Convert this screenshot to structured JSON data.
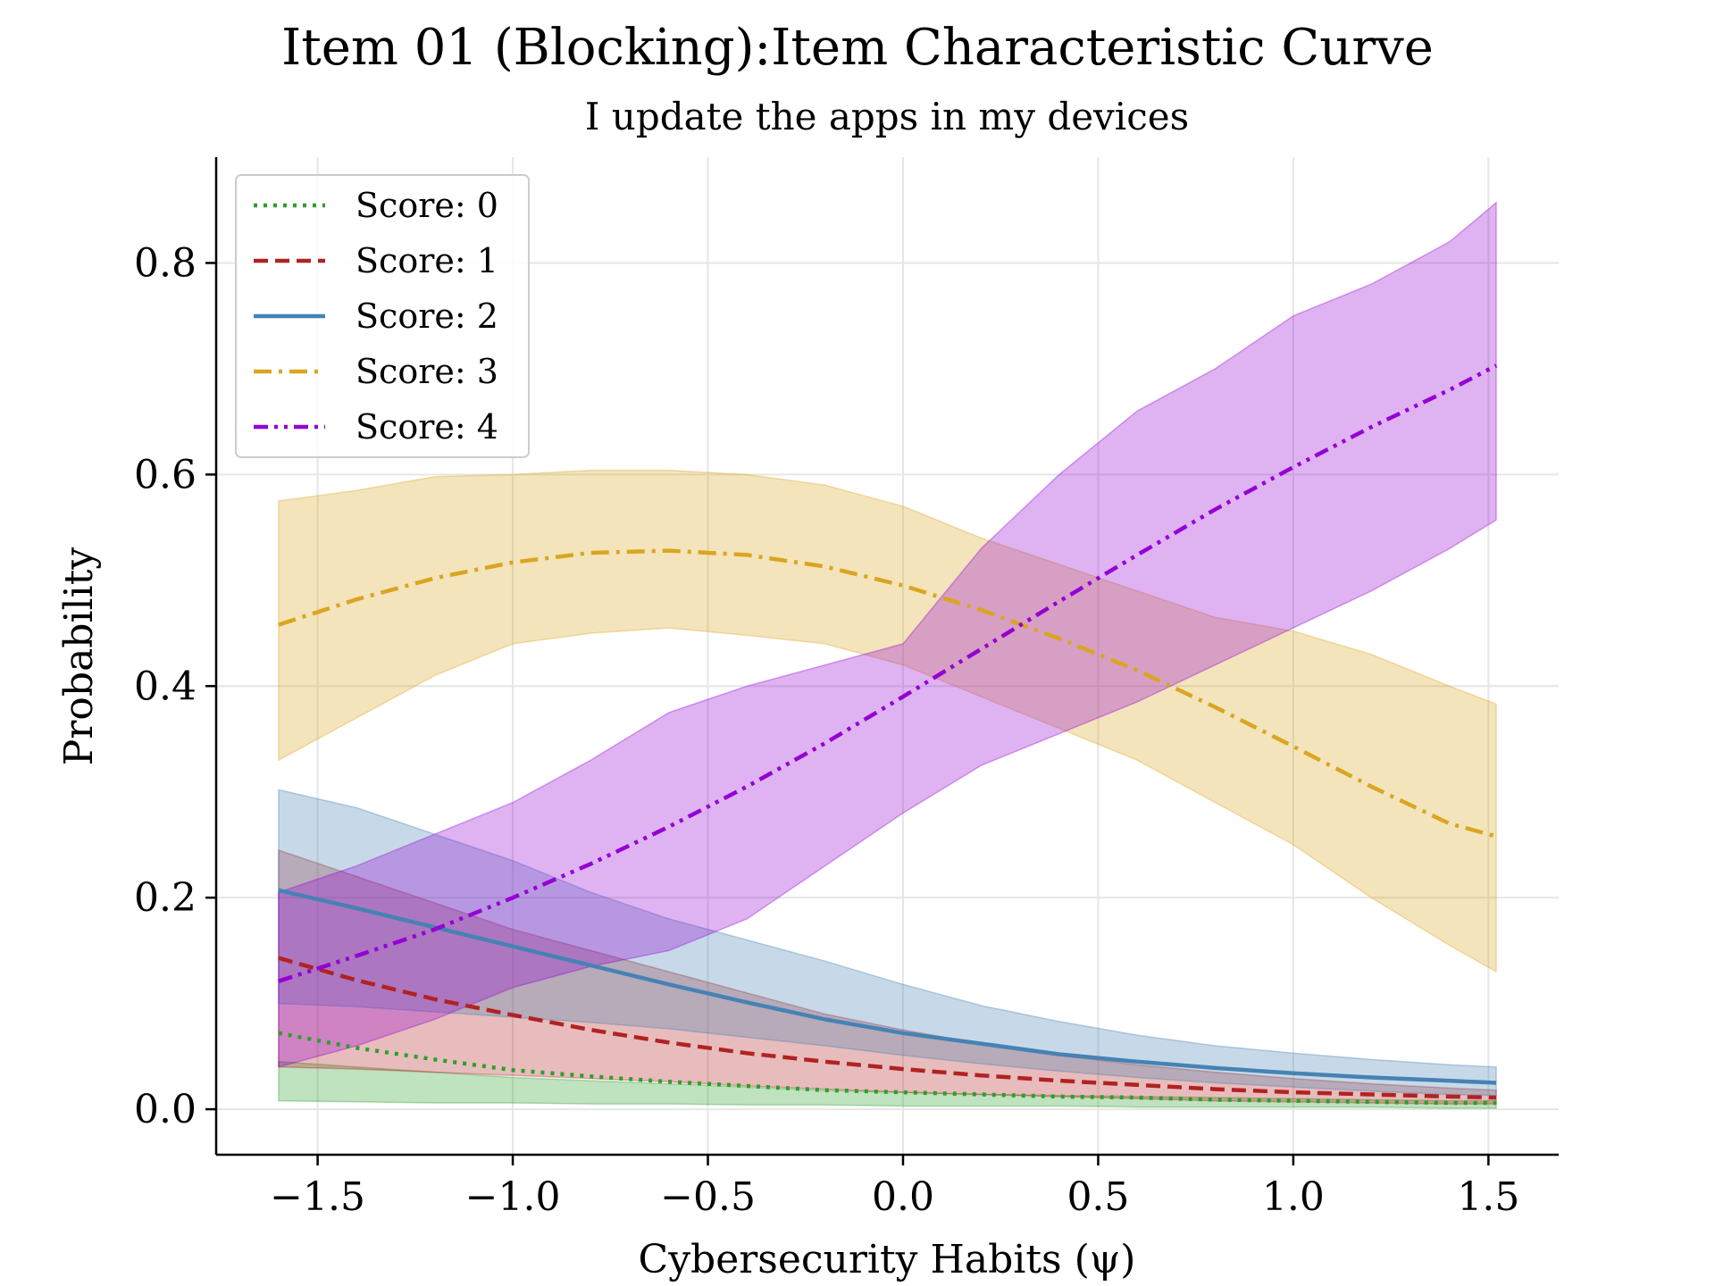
{
  "chart_data": {
    "type": "line",
    "title": "Item 01 (Blocking):Item Characteristic Curve",
    "subtitle": "I update the apps in my devices",
    "xlabel": "Cybersecurity Habits (ψ)",
    "ylabel": "Probability",
    "xlim": [
      -1.76,
      1.68
    ],
    "ylim": [
      -0.043,
      0.9
    ],
    "x_ticks": [
      -1.5,
      -1.0,
      -0.5,
      0.0,
      0.5,
      1.0,
      1.5
    ],
    "x_tick_labels": [
      "−1.5",
      "−1.0",
      "−0.5",
      "0.0",
      "0.5",
      "1.0",
      "1.5"
    ],
    "y_ticks": [
      0.0,
      0.2,
      0.4,
      0.6,
      0.8
    ],
    "y_tick_labels": [
      "0.0",
      "0.2",
      "0.4",
      "0.6",
      "0.8"
    ],
    "grid": true,
    "legend_position": "top-left",
    "x": [
      -1.6,
      -1.4,
      -1.2,
      -1.0,
      -0.8,
      -0.6,
      -0.4,
      -0.2,
      0.0,
      0.2,
      0.4,
      0.6,
      0.8,
      1.0,
      1.2,
      1.4,
      1.52
    ],
    "series": [
      {
        "name": "Score: 0",
        "color": "#2ca02c",
        "line_style": "dotted",
        "values": [
          0.072,
          0.058,
          0.047,
          0.037,
          0.031,
          0.026,
          0.022,
          0.018,
          0.016,
          0.014,
          0.012,
          0.011,
          0.009,
          0.008,
          0.007,
          0.006,
          0.006
        ],
        "lower": [
          0.008,
          0.007,
          0.006,
          0.006,
          0.005,
          0.005,
          0.004,
          0.004,
          0.003,
          0.003,
          0.003,
          0.002,
          0.002,
          0.002,
          0.002,
          0.001,
          0.001
        ],
        "upper": [
          0.045,
          0.04,
          0.035,
          0.03,
          0.027,
          0.024,
          0.021,
          0.018,
          0.016,
          0.014,
          0.013,
          0.012,
          0.011,
          0.01,
          0.009,
          0.008,
          0.008
        ]
      },
      {
        "name": "Score: 1",
        "color": "#b22222",
        "line_style": "dashed",
        "values": [
          0.143,
          0.122,
          0.104,
          0.089,
          0.075,
          0.063,
          0.053,
          0.045,
          0.038,
          0.032,
          0.027,
          0.023,
          0.019,
          0.016,
          0.014,
          0.012,
          0.011
        ],
        "lower": [
          0.04,
          0.038,
          0.035,
          0.032,
          0.029,
          0.026,
          0.022,
          0.019,
          0.016,
          0.014,
          0.012,
          0.01,
          0.008,
          0.007,
          0.006,
          0.005,
          0.005
        ],
        "upper": [
          0.245,
          0.22,
          0.195,
          0.17,
          0.15,
          0.13,
          0.11,
          0.09,
          0.075,
          0.062,
          0.051,
          0.042,
          0.035,
          0.029,
          0.024,
          0.02,
          0.018
        ]
      },
      {
        "name": "Score: 2",
        "color": "#4682b4",
        "line_style": "solid",
        "values": [
          0.207,
          0.19,
          0.172,
          0.154,
          0.136,
          0.118,
          0.101,
          0.085,
          0.072,
          0.062,
          0.052,
          0.045,
          0.039,
          0.034,
          0.03,
          0.027,
          0.025
        ],
        "lower": [
          0.1,
          0.097,
          0.092,
          0.087,
          0.082,
          0.076,
          0.068,
          0.06,
          0.051,
          0.043,
          0.036,
          0.03,
          0.025,
          0.021,
          0.017,
          0.014,
          0.013
        ],
        "upper": [
          0.302,
          0.285,
          0.26,
          0.235,
          0.205,
          0.18,
          0.16,
          0.14,
          0.118,
          0.098,
          0.083,
          0.07,
          0.06,
          0.053,
          0.047,
          0.042,
          0.04
        ]
      },
      {
        "name": "Score: 3",
        "color": "#daa520",
        "line_style": "dashdot",
        "values": [
          0.458,
          0.482,
          0.502,
          0.517,
          0.526,
          0.528,
          0.524,
          0.513,
          0.495,
          0.472,
          0.445,
          0.415,
          0.38,
          0.343,
          0.305,
          0.27,
          0.258
        ],
        "lower": [
          0.33,
          0.37,
          0.41,
          0.44,
          0.45,
          0.455,
          0.448,
          0.44,
          0.42,
          0.39,
          0.36,
          0.33,
          0.29,
          0.25,
          0.2,
          0.155,
          0.13
        ],
        "upper": [
          0.575,
          0.585,
          0.598,
          0.6,
          0.604,
          0.604,
          0.6,
          0.59,
          0.57,
          0.54,
          0.515,
          0.49,
          0.465,
          0.452,
          0.43,
          0.4,
          0.383
        ]
      },
      {
        "name": "Score: 4",
        "color": "#9400d3",
        "line_style": "dashdotdot",
        "values": [
          0.121,
          0.145,
          0.17,
          0.2,
          0.232,
          0.267,
          0.305,
          0.346,
          0.39,
          0.435,
          0.48,
          0.524,
          0.567,
          0.607,
          0.645,
          0.68,
          0.703
        ],
        "lower": [
          0.04,
          0.06,
          0.085,
          0.115,
          0.135,
          0.15,
          0.18,
          0.23,
          0.28,
          0.325,
          0.355,
          0.385,
          0.42,
          0.455,
          0.49,
          0.53,
          0.557
        ],
        "upper": [
          0.205,
          0.23,
          0.26,
          0.29,
          0.33,
          0.375,
          0.4,
          0.42,
          0.44,
          0.53,
          0.6,
          0.66,
          0.7,
          0.75,
          0.78,
          0.82,
          0.857
        ]
      }
    ]
  }
}
